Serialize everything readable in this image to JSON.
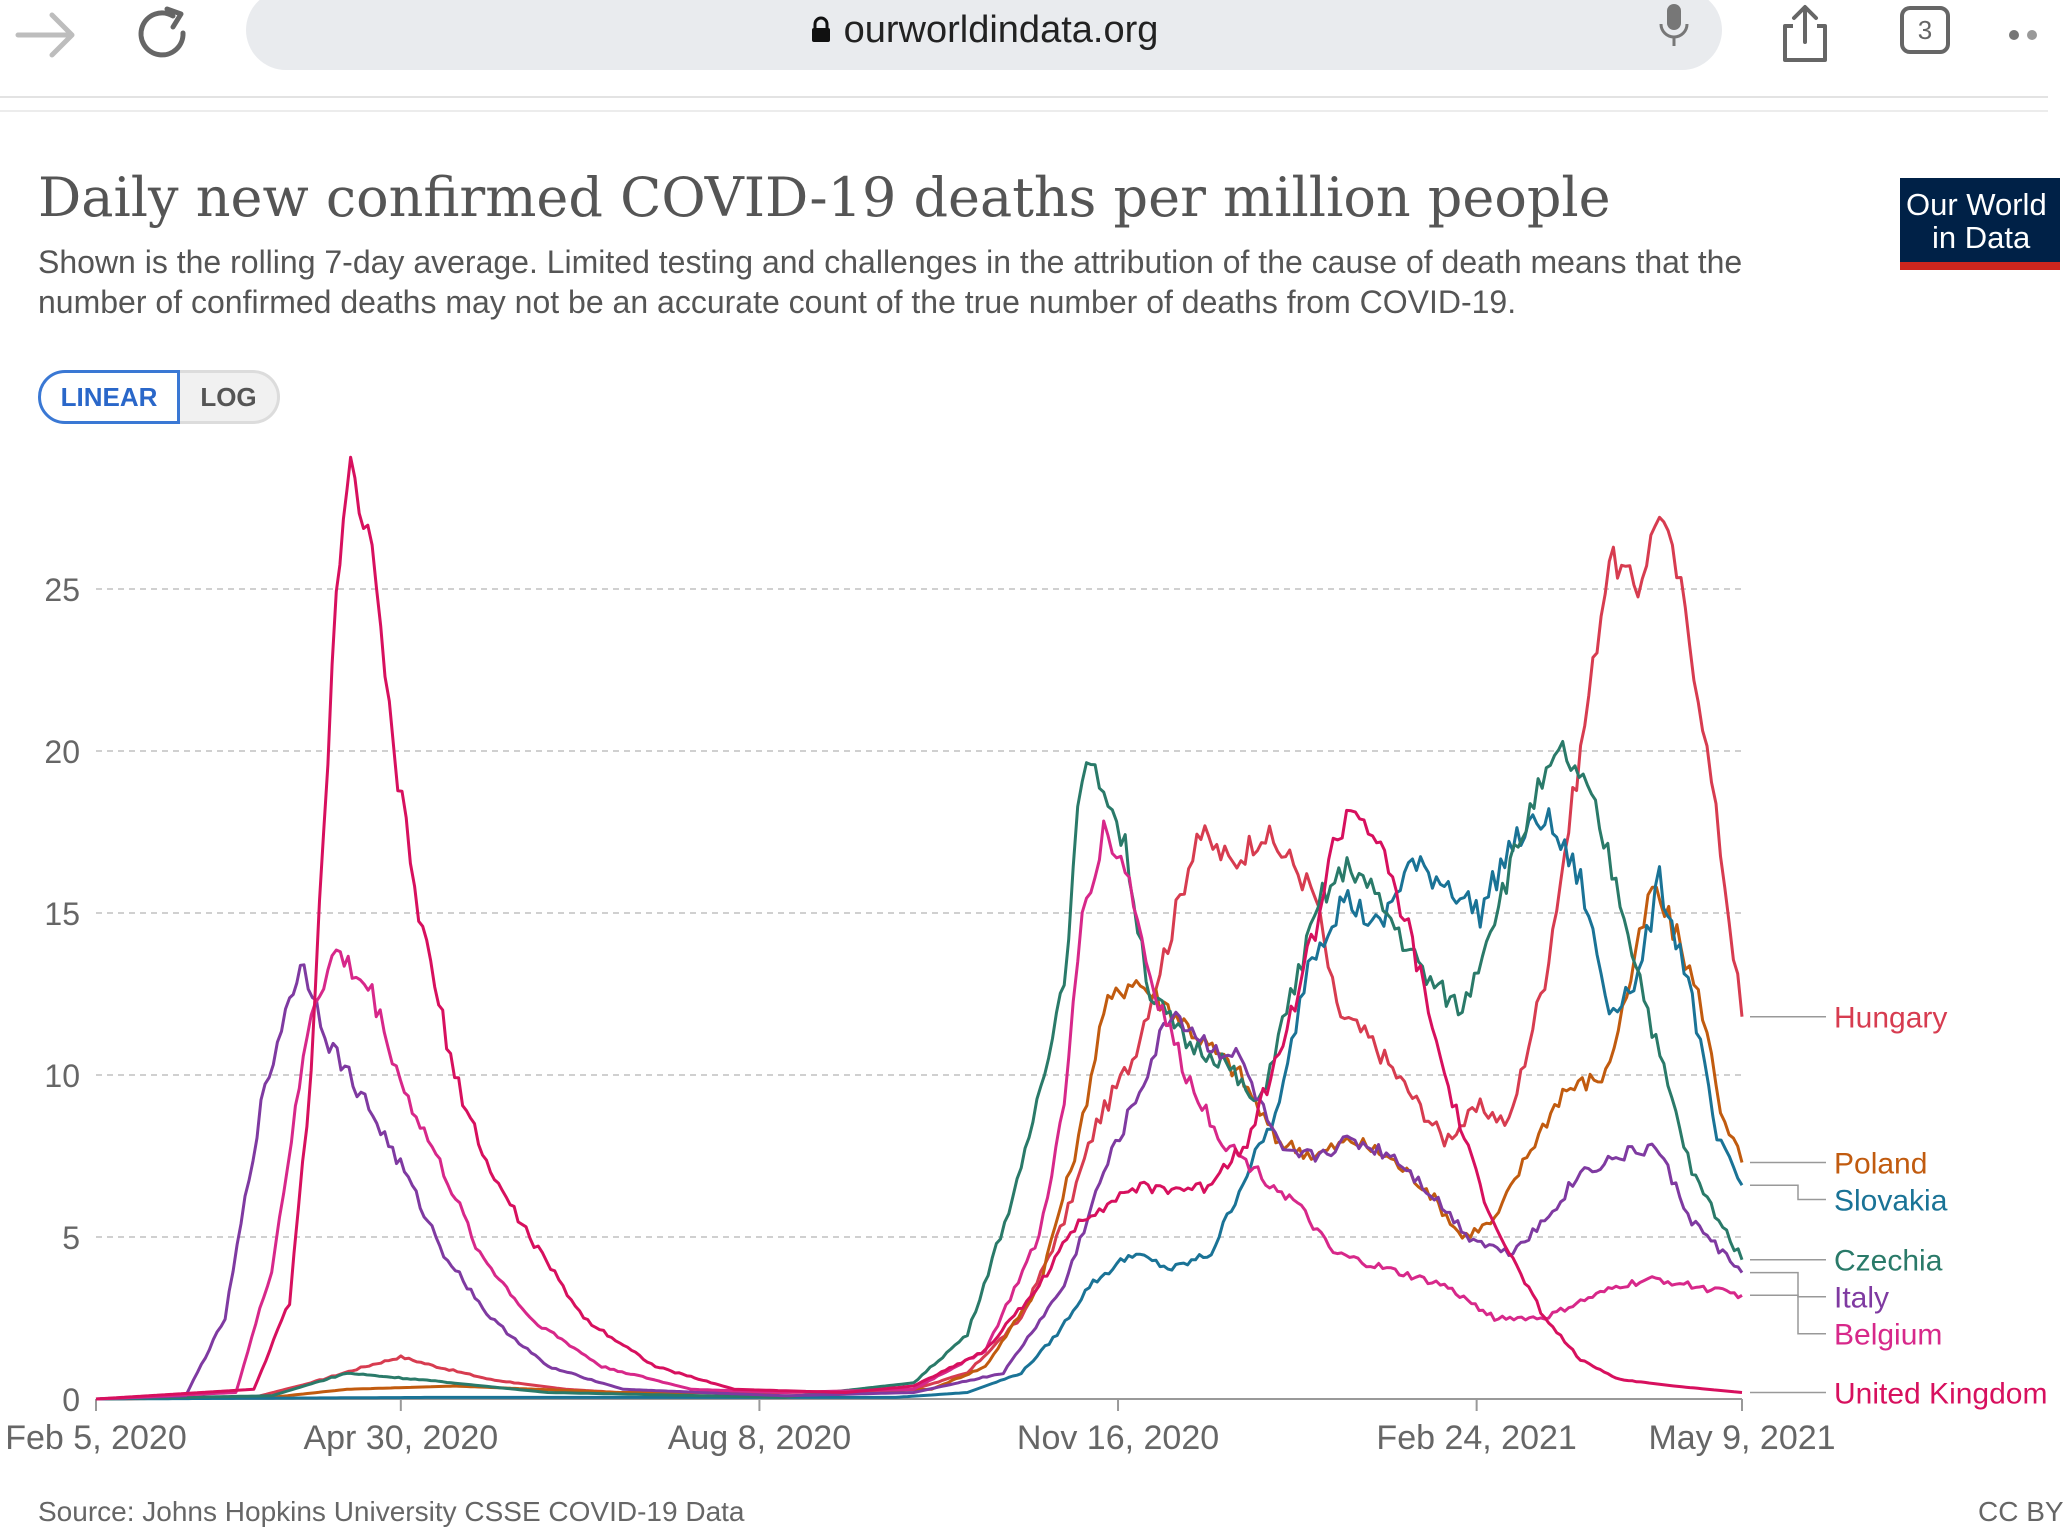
{
  "browser": {
    "url": "ourworldindata.org",
    "tab_count": "3",
    "icons": [
      "forward-arrow-icon",
      "reload-icon",
      "lock-icon",
      "microphone-icon",
      "share-icon",
      "tabs-icon",
      "more-icon"
    ]
  },
  "chart": {
    "title": "Daily new confirmed COVID-19 deaths per million people",
    "subtitle": "Shown is the rolling 7-day average. Limited testing and challenges in the attribution of the cause of death means that the number of confirmed deaths may not be an accurate count of the true number of deaths from COVID-19.",
    "logo_line1": "Our World",
    "logo_line2": "in Data",
    "scale_buttons": {
      "linear": "LINEAR",
      "log": "LOG",
      "selected": "LINEAR"
    },
    "source": "Source: Johns Hopkins University CSSE COVID-19 Data",
    "license": "CC BY"
  },
  "colors": {
    "Hungary": "#d73c50",
    "Poland": "#c15b0f",
    "Slovakia": "#1a7396",
    "Czechia": "#2a7a69",
    "Italy": "#7f3aa1",
    "Belgium": "#d7288a",
    "United Kingdom": "#d7105e"
  },
  "chart_data": {
    "type": "line",
    "x_ticks": [
      "Feb 5, 2020",
      "Apr 30, 2020",
      "Aug 8, 2020",
      "Nov 16, 2020",
      "Feb 24, 2021",
      "May 9, 2021"
    ],
    "y_ticks": [
      0,
      5,
      10,
      15,
      20,
      25
    ],
    "xlim": [
      "2020-02-05",
      "2021-05-09"
    ],
    "ylim": [
      0,
      28
    ],
    "grid": "horizontal dashed",
    "legend_position": "right, end-labels",
    "ylabel": "",
    "xlabel": "",
    "series": [
      {
        "name": "Hungary",
        "points": [
          [
            "2020-02-05",
            0
          ],
          [
            "2020-03-20",
            0.05
          ],
          [
            "2020-04-05",
            0.5
          ],
          [
            "2020-04-20",
            1.0
          ],
          [
            "2020-04-30",
            1.3
          ],
          [
            "2020-05-10",
            1.0
          ],
          [
            "2020-05-25",
            0.6
          ],
          [
            "2020-06-15",
            0.3
          ],
          [
            "2020-07-15",
            0.1
          ],
          [
            "2020-08-25",
            0.1
          ],
          [
            "2020-09-20",
            0.3
          ],
          [
            "2020-10-05",
            0.8
          ],
          [
            "2020-10-20",
            2.5
          ],
          [
            "2020-11-01",
            5.5
          ],
          [
            "2020-11-10",
            8.5
          ],
          [
            "2020-11-20",
            10.5
          ],
          [
            "2020-12-01",
            14.5
          ],
          [
            "2020-12-08",
            17.5
          ],
          [
            "2020-12-18",
            16.5
          ],
          [
            "2020-12-26",
            17.5
          ],
          [
            "2021-01-04",
            16.5
          ],
          [
            "2021-01-10",
            15.5
          ],
          [
            "2021-01-16",
            12.0
          ],
          [
            "2021-01-26",
            11.0
          ],
          [
            "2021-02-05",
            9.5
          ],
          [
            "2021-02-15",
            8.0
          ],
          [
            "2021-02-25",
            9.0
          ],
          [
            "2021-03-05",
            8.5
          ],
          [
            "2021-03-15",
            13.0
          ],
          [
            "2021-03-25",
            20.0
          ],
          [
            "2021-04-02",
            26.0
          ],
          [
            "2021-04-10",
            25.0
          ],
          [
            "2021-04-16",
            27.5
          ],
          [
            "2021-04-22",
            25.0
          ],
          [
            "2021-04-28",
            21.0
          ],
          [
            "2021-05-03",
            17.0
          ],
          [
            "2021-05-09",
            11.8
          ]
        ]
      },
      {
        "name": "Poland",
        "points": [
          [
            "2020-02-05",
            0
          ],
          [
            "2020-03-25",
            0.05
          ],
          [
            "2020-04-15",
            0.3
          ],
          [
            "2020-05-15",
            0.4
          ],
          [
            "2020-06-30",
            0.2
          ],
          [
            "2020-08-15",
            0.2
          ],
          [
            "2020-09-25",
            0.3
          ],
          [
            "2020-10-10",
            1.0
          ],
          [
            "2020-10-25",
            3.5
          ],
          [
            "2020-11-05",
            8.0
          ],
          [
            "2020-11-12",
            12.0
          ],
          [
            "2020-11-20",
            13.0
          ],
          [
            "2020-12-01",
            12.0
          ],
          [
            "2020-12-10",
            11.0
          ],
          [
            "2020-12-20",
            10.0
          ],
          [
            "2020-12-30",
            8.0
          ],
          [
            "2021-01-10",
            7.5
          ],
          [
            "2021-01-20",
            8.0
          ],
          [
            "2021-01-30",
            7.5
          ],
          [
            "2021-02-10",
            6.5
          ],
          [
            "2021-02-20",
            5.0
          ],
          [
            "2021-03-01",
            5.5
          ],
          [
            "2021-03-10",
            7.5
          ],
          [
            "2021-03-20",
            9.5
          ],
          [
            "2021-04-01",
            10.0
          ],
          [
            "2021-04-08",
            13.0
          ],
          [
            "2021-04-14",
            15.8
          ],
          [
            "2021-04-22",
            14.0
          ],
          [
            "2021-04-28",
            12.0
          ],
          [
            "2021-05-03",
            9.0
          ],
          [
            "2021-05-09",
            7.3
          ]
        ]
      },
      {
        "name": "Slovakia",
        "points": [
          [
            "2020-02-05",
            0
          ],
          [
            "2020-05-10",
            0.05
          ],
          [
            "2020-09-15",
            0.05
          ],
          [
            "2020-10-05",
            0.2
          ],
          [
            "2020-10-20",
            0.8
          ],
          [
            "2020-10-30",
            2.0
          ],
          [
            "2020-11-08",
            3.5
          ],
          [
            "2020-11-20",
            4.5
          ],
          [
            "2020-12-01",
            4.0
          ],
          [
            "2020-12-12",
            4.5
          ],
          [
            "2020-12-22",
            7.0
          ],
          [
            "2020-12-31",
            9.0
          ],
          [
            "2021-01-08",
            13.5
          ],
          [
            "2021-01-18",
            15.5
          ],
          [
            "2021-01-28",
            14.5
          ],
          [
            "2021-02-05",
            16.5
          ],
          [
            "2021-02-15",
            16.0
          ],
          [
            "2021-02-25",
            15.0
          ],
          [
            "2021-03-05",
            17.0
          ],
          [
            "2021-03-15",
            18.0
          ],
          [
            "2021-03-25",
            16.0
          ],
          [
            "2021-04-02",
            12.0
          ],
          [
            "2021-04-10",
            13.0
          ],
          [
            "2021-04-16",
            16.0
          ],
          [
            "2021-04-24",
            13.0
          ],
          [
            "2021-05-02",
            8.0
          ],
          [
            "2021-05-09",
            6.6
          ]
        ]
      },
      {
        "name": "Czechia",
        "points": [
          [
            "2020-02-05",
            0
          ],
          [
            "2020-03-25",
            0.1
          ],
          [
            "2020-04-15",
            0.8
          ],
          [
            "2020-05-05",
            0.6
          ],
          [
            "2020-06-10",
            0.2
          ],
          [
            "2020-08-15",
            0.05
          ],
          [
            "2020-09-20",
            0.5
          ],
          [
            "2020-10-05",
            2.0
          ],
          [
            "2020-10-20",
            7.0
          ],
          [
            "2020-11-01",
            13.0
          ],
          [
            "2020-11-06",
            19.5
          ],
          [
            "2020-11-12",
            19.0
          ],
          [
            "2020-11-18",
            17.0
          ],
          [
            "2020-11-25",
            12.5
          ],
          [
            "2020-12-05",
            11.0
          ],
          [
            "2020-12-15",
            10.5
          ],
          [
            "2020-12-25",
            9.0
          ],
          [
            "2021-01-02",
            12.0
          ],
          [
            "2021-01-12",
            15.5
          ],
          [
            "2021-01-20",
            16.5
          ],
          [
            "2021-01-30",
            15.0
          ],
          [
            "2021-02-10",
            13.0
          ],
          [
            "2021-02-20",
            12.0
          ],
          [
            "2021-03-01",
            15.0
          ],
          [
            "2021-03-12",
            18.5
          ],
          [
            "2021-03-20",
            20.0
          ],
          [
            "2021-03-28",
            18.5
          ],
          [
            "2021-04-05",
            15.5
          ],
          [
            "2021-04-15",
            11.0
          ],
          [
            "2021-04-25",
            7.0
          ],
          [
            "2021-05-09",
            4.3
          ]
        ]
      },
      {
        "name": "Italy",
        "points": [
          [
            "2020-02-05",
            0
          ],
          [
            "2020-03-01",
            0.1
          ],
          [
            "2020-03-12",
            2.5
          ],
          [
            "2020-03-22",
            9.0
          ],
          [
            "2020-03-30",
            12.5
          ],
          [
            "2020-04-03",
            13.4
          ],
          [
            "2020-04-10",
            11.0
          ],
          [
            "2020-04-20",
            9.2
          ],
          [
            "2020-05-01",
            7.0
          ],
          [
            "2020-05-12",
            4.5
          ],
          [
            "2020-05-25",
            2.5
          ],
          [
            "2020-06-10",
            1.0
          ],
          [
            "2020-07-01",
            0.3
          ],
          [
            "2020-08-15",
            0.1
          ],
          [
            "2020-09-20",
            0.2
          ],
          [
            "2020-10-15",
            0.8
          ],
          [
            "2020-11-01",
            3.5
          ],
          [
            "2020-11-12",
            7.0
          ],
          [
            "2020-11-22",
            9.5
          ],
          [
            "2020-12-01",
            12.0
          ],
          [
            "2020-12-10",
            11.0
          ],
          [
            "2020-12-20",
            10.5
          ],
          [
            "2021-01-01",
            7.5
          ],
          [
            "2021-01-10",
            7.5
          ],
          [
            "2021-01-20",
            8.0
          ],
          [
            "2021-02-01",
            7.5
          ],
          [
            "2021-02-10",
            6.5
          ],
          [
            "2021-02-22",
            5.0
          ],
          [
            "2021-03-05",
            4.5
          ],
          [
            "2021-03-15",
            5.5
          ],
          [
            "2021-03-25",
            7.0
          ],
          [
            "2021-04-05",
            7.5
          ],
          [
            "2021-04-15",
            7.8
          ],
          [
            "2021-04-25",
            5.5
          ],
          [
            "2021-05-09",
            3.9
          ]
        ]
      },
      {
        "name": "Belgium",
        "points": [
          [
            "2020-02-05",
            0
          ],
          [
            "2020-03-15",
            0.2
          ],
          [
            "2020-03-25",
            4.0
          ],
          [
            "2020-04-05",
            12.0
          ],
          [
            "2020-04-12",
            13.8
          ],
          [
            "2020-04-22",
            12.5
          ],
          [
            "2020-05-01",
            9.5
          ],
          [
            "2020-05-12",
            7.0
          ],
          [
            "2020-05-22",
            4.5
          ],
          [
            "2020-06-05",
            2.5
          ],
          [
            "2020-06-25",
            1.0
          ],
          [
            "2020-07-20",
            0.3
          ],
          [
            "2020-08-15",
            0.2
          ],
          [
            "2020-09-20",
            0.3
          ],
          [
            "2020-10-10",
            1.5
          ],
          [
            "2020-10-25",
            5.0
          ],
          [
            "2020-11-01",
            9.0
          ],
          [
            "2020-11-06",
            15.0
          ],
          [
            "2020-11-12",
            17.5
          ],
          [
            "2020-11-18",
            16.5
          ],
          [
            "2020-11-25",
            13.0
          ],
          [
            "2020-12-05",
            10.0
          ],
          [
            "2020-12-15",
            8.0
          ],
          [
            "2020-12-25",
            7.0
          ],
          [
            "2021-01-05",
            6.0
          ],
          [
            "2021-01-15",
            4.5
          ],
          [
            "2021-01-30",
            4.0
          ],
          [
            "2021-02-15",
            3.5
          ],
          [
            "2021-03-01",
            2.5
          ],
          [
            "2021-03-15",
            2.5
          ],
          [
            "2021-03-25",
            3.0
          ],
          [
            "2021-04-05",
            3.5
          ],
          [
            "2021-04-15",
            3.7
          ],
          [
            "2021-04-25",
            3.5
          ],
          [
            "2021-05-09",
            3.2
          ]
        ]
      },
      {
        "name": "United Kingdom",
        "points": [
          [
            "2020-02-05",
            0
          ],
          [
            "2020-03-20",
            0.3
          ],
          [
            "2020-03-30",
            3.0
          ],
          [
            "2020-04-05",
            10.0
          ],
          [
            "2020-04-12",
            25.0
          ],
          [
            "2020-04-16",
            28.7
          ],
          [
            "2020-04-22",
            26.0
          ],
          [
            "2020-04-28",
            20.0
          ],
          [
            "2020-05-05",
            15.0
          ],
          [
            "2020-05-15",
            10.0
          ],
          [
            "2020-05-25",
            7.0
          ],
          [
            "2020-06-05",
            5.0
          ],
          [
            "2020-06-20",
            2.5
          ],
          [
            "2020-07-10",
            1.0
          ],
          [
            "2020-08-01",
            0.3
          ],
          [
            "2020-09-01",
            0.2
          ],
          [
            "2020-09-20",
            0.4
          ],
          [
            "2020-10-10",
            1.5
          ],
          [
            "2020-10-25",
            3.5
          ],
          [
            "2020-11-05",
            5.5
          ],
          [
            "2020-11-20",
            6.5
          ],
          [
            "2020-12-01",
            6.5
          ],
          [
            "2020-12-10",
            6.5
          ],
          [
            "2020-12-22",
            8.0
          ],
          [
            "2021-01-01",
            11.0
          ],
          [
            "2021-01-10",
            14.5
          ],
          [
            "2021-01-15",
            17.0
          ],
          [
            "2021-01-20",
            18.3
          ],
          [
            "2021-01-26",
            17.5
          ],
          [
            "2021-02-05",
            14.5
          ],
          [
            "2021-02-15",
            10.0
          ],
          [
            "2021-02-25",
            6.5
          ],
          [
            "2021-03-05",
            4.5
          ],
          [
            "2021-03-15",
            2.5
          ],
          [
            "2021-03-25",
            1.2
          ],
          [
            "2021-04-05",
            0.6
          ],
          [
            "2021-04-20",
            0.4
          ],
          [
            "2021-05-09",
            0.2
          ]
        ]
      }
    ]
  }
}
